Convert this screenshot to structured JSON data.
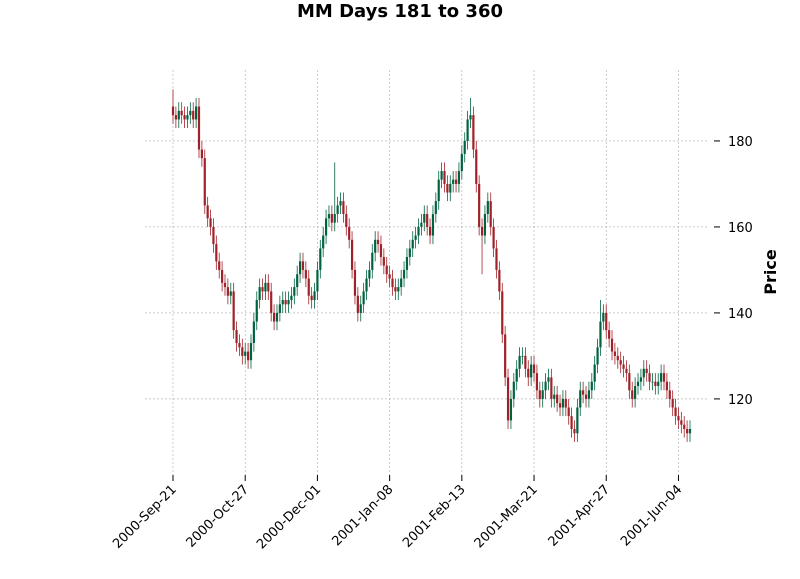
{
  "chart_data": {
    "type": "candlestick",
    "title": "MM Days 181 to 360",
    "ylabel": "Price",
    "categories": [
      "2000-Sep-21",
      null,
      null,
      null,
      null,
      null,
      null,
      null,
      null,
      null,
      null,
      null,
      null,
      null,
      null,
      null,
      null,
      null,
      null,
      null,
      null,
      null,
      null,
      null,
      null,
      "2000-Oct-27",
      null,
      null,
      null,
      null,
      null,
      null,
      null,
      null,
      null,
      null,
      null,
      null,
      null,
      null,
      null,
      null,
      null,
      null,
      null,
      null,
      null,
      null,
      null,
      null,
      "2000-Dec-01",
      null,
      null,
      null,
      null,
      null,
      null,
      null,
      null,
      null,
      null,
      null,
      null,
      null,
      null,
      null,
      null,
      null,
      null,
      null,
      null,
      null,
      null,
      null,
      null,
      "2001-Jan-08",
      null,
      null,
      null,
      null,
      null,
      null,
      null,
      null,
      null,
      null,
      null,
      null,
      null,
      null,
      null,
      null,
      null,
      null,
      null,
      null,
      null,
      null,
      null,
      null,
      "2001-Feb-13",
      null,
      null,
      null,
      null,
      null,
      null,
      null,
      null,
      null,
      null,
      null,
      null,
      null,
      null,
      null,
      null,
      null,
      null,
      null,
      null,
      null,
      null,
      null,
      null,
      "2001-Mar-21",
      null,
      null,
      null,
      null,
      null,
      null,
      null,
      null,
      null,
      null,
      null,
      null,
      null,
      null,
      null,
      null,
      null,
      null,
      null,
      null,
      null,
      null,
      null,
      null,
      "2001-Apr-27",
      null,
      null,
      null,
      null,
      null,
      null,
      null,
      null,
      null,
      null,
      null,
      null,
      null,
      null,
      null,
      null,
      null,
      null,
      null,
      null,
      null,
      null,
      null,
      null,
      "2001-Jun-04",
      null,
      null,
      null,
      null
    ],
    "open": [
      188,
      186,
      185,
      187,
      186,
      185,
      186,
      187,
      185,
      188,
      178,
      176,
      165,
      162,
      160,
      156,
      152,
      150,
      147,
      146,
      144,
      145,
      136,
      133,
      132,
      130,
      131,
      129,
      133,
      138,
      143,
      146,
      145,
      147,
      145,
      140,
      138,
      140,
      142,
      143,
      142,
      143,
      144,
      146,
      149,
      152,
      150,
      148,
      144,
      143,
      145,
      150,
      155,
      158,
      162,
      163,
      161,
      163,
      165,
      166,
      163,
      160,
      157,
      150,
      144,
      140,
      142,
      145,
      148,
      150,
      154,
      157,
      156,
      153,
      151,
      149,
      148,
      146,
      145,
      146,
      148,
      150,
      153,
      155,
      157,
      158,
      160,
      161,
      163,
      160,
      158,
      163,
      166,
      171,
      173,
      170,
      168,
      170,
      171,
      170,
      173,
      177,
      180,
      185,
      186,
      178,
      170,
      160,
      158,
      163,
      166,
      160,
      155,
      150,
      145,
      135,
      125,
      115,
      120,
      124,
      127,
      130,
      130,
      127,
      125,
      128,
      126,
      122,
      120,
      122,
      124,
      125,
      120,
      121,
      119,
      118,
      120,
      118,
      116,
      113,
      112,
      118,
      122,
      121,
      120,
      122,
      124,
      128,
      132,
      138,
      140,
      136,
      134,
      131,
      130,
      129,
      128,
      127,
      126,
      122,
      120,
      123,
      124,
      125,
      127,
      126,
      124,
      124,
      123,
      124,
      126,
      124,
      122,
      120,
      118,
      116,
      115,
      114,
      113,
      112
    ],
    "high": [
      192,
      188,
      189,
      189,
      188,
      188,
      189,
      189,
      190,
      190,
      180,
      178,
      167,
      164,
      162,
      158,
      154,
      152,
      149,
      148,
      147,
      147,
      138,
      135,
      134,
      133,
      133,
      135,
      140,
      145,
      148,
      148,
      149,
      149,
      147,
      142,
      142,
      144,
      145,
      145,
      145,
      146,
      148,
      151,
      154,
      154,
      152,
      150,
      146,
      147,
      152,
      157,
      160,
      164,
      165,
      165,
      175,
      167,
      168,
      168,
      165,
      162,
      159,
      152,
      146,
      144,
      147,
      150,
      152,
      156,
      159,
      159,
      158,
      155,
      153,
      151,
      150,
      148,
      148,
      150,
      152,
      155,
      157,
      159,
      160,
      162,
      163,
      165,
      165,
      162,
      165,
      168,
      173,
      175,
      175,
      172,
      172,
      173,
      173,
      175,
      179,
      182,
      187,
      190,
      188,
      180,
      172,
      162,
      165,
      168,
      168,
      162,
      157,
      152,
      147,
      137,
      127,
      122,
      126,
      129,
      132,
      132,
      132,
      129,
      130,
      130,
      128,
      124,
      124,
      126,
      127,
      127,
      123,
      123,
      121,
      122,
      122,
      120,
      118,
      115,
      120,
      124,
      124,
      123,
      124,
      126,
      130,
      134,
      143,
      142,
      142,
      138,
      136,
      133,
      132,
      131,
      130,
      129,
      128,
      124,
      125,
      126,
      127,
      129,
      129,
      128,
      126,
      126,
      126,
      128,
      128,
      126,
      124,
      122,
      120,
      118,
      117,
      116,
      115,
      115
    ],
    "low": [
      184,
      183,
      183,
      184,
      183,
      183,
      184,
      183,
      183,
      176,
      174,
      163,
      160,
      158,
      154,
      150,
      148,
      145,
      144,
      142,
      142,
      134,
      131,
      130,
      128,
      128,
      127,
      127,
      131,
      136,
      141,
      143,
      143,
      143,
      138,
      136,
      136,
      138,
      140,
      140,
      140,
      141,
      142,
      144,
      147,
      148,
      146,
      142,
      141,
      141,
      143,
      148,
      153,
      156,
      160,
      159,
      159,
      161,
      163,
      161,
      158,
      155,
      148,
      142,
      138,
      138,
      140,
      143,
      146,
      148,
      152,
      154,
      151,
      149,
      147,
      146,
      144,
      143,
      143,
      144,
      146,
      148,
      151,
      153,
      155,
      156,
      158,
      159,
      158,
      156,
      156,
      161,
      164,
      169,
      168,
      166,
      166,
      168,
      168,
      168,
      171,
      175,
      178,
      183,
      176,
      168,
      158,
      149,
      156,
      161,
      158,
      153,
      148,
      143,
      133,
      123,
      113,
      113,
      118,
      122,
      125,
      128,
      125,
      123,
      123,
      124,
      120,
      118,
      118,
      120,
      122,
      118,
      118,
      117,
      116,
      116,
      116,
      114,
      111,
      110,
      110,
      116,
      119,
      118,
      118,
      120,
      122,
      126,
      130,
      136,
      134,
      132,
      129,
      128,
      127,
      126,
      125,
      124,
      120,
      118,
      118,
      121,
      122,
      123,
      124,
      122,
      122,
      121,
      121,
      122,
      122,
      120,
      118,
      116,
      114,
      113,
      112,
      111,
      110,
      110
    ],
    "close": [
      186,
      185,
      187,
      186,
      185,
      186,
      187,
      185,
      188,
      178,
      176,
      165,
      162,
      160,
      156,
      152,
      150,
      147,
      146,
      144,
      145,
      136,
      133,
      132,
      130,
      131,
      129,
      133,
      138,
      143,
      146,
      145,
      147,
      145,
      140,
      138,
      140,
      142,
      143,
      142,
      143,
      144,
      146,
      149,
      152,
      150,
      148,
      144,
      143,
      145,
      150,
      155,
      158,
      162,
      163,
      161,
      163,
      165,
      166,
      163,
      160,
      157,
      150,
      144,
      140,
      142,
      145,
      148,
      150,
      154,
      157,
      156,
      153,
      151,
      149,
      148,
      146,
      145,
      146,
      148,
      150,
      153,
      155,
      157,
      158,
      160,
      161,
      163,
      160,
      158,
      163,
      166,
      171,
      173,
      170,
      168,
      170,
      171,
      170,
      173,
      177,
      180,
      185,
      186,
      178,
      170,
      160,
      158,
      163,
      166,
      160,
      155,
      150,
      145,
      135,
      125,
      115,
      120,
      124,
      127,
      130,
      130,
      127,
      125,
      128,
      126,
      122,
      120,
      122,
      124,
      125,
      120,
      121,
      119,
      118,
      120,
      118,
      116,
      113,
      112,
      118,
      122,
      121,
      120,
      122,
      124,
      128,
      132,
      138,
      140,
      136,
      134,
      131,
      130,
      129,
      128,
      127,
      126,
      122,
      120,
      123,
      124,
      125,
      127,
      126,
      124,
      124,
      123,
      124,
      126,
      124,
      122,
      120,
      118,
      116,
      115,
      114,
      113,
      112,
      113
    ],
    "up_color": "#006340",
    "down_color": "#a02128",
    "ylim": [
      102.3,
      196.5
    ],
    "yticks": [
      120,
      140,
      160,
      180
    ],
    "grid": true
  }
}
